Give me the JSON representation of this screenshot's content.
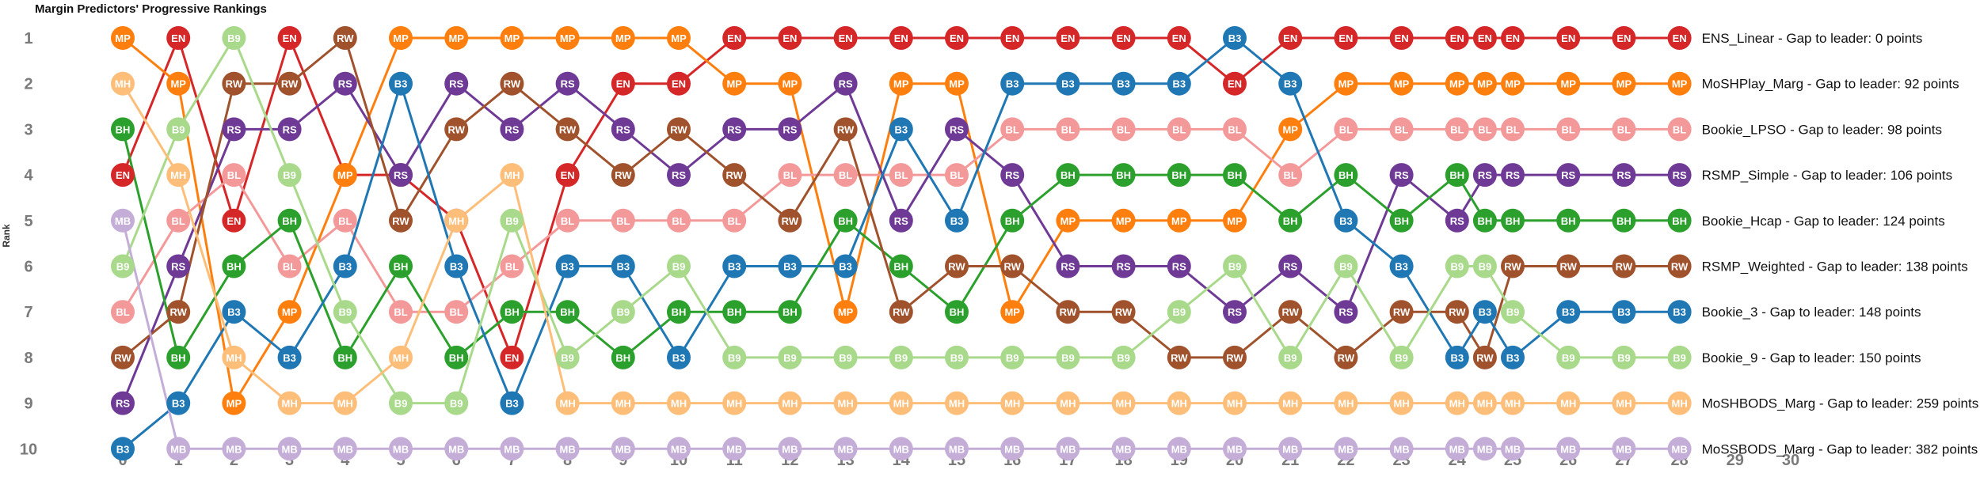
{
  "chart_data": {
    "type": "line",
    "title": "Margin Predictors' Progressive Rankings",
    "xlabel": "",
    "ylabel": "Rank",
    "x_ticks": [
      0,
      1,
      2,
      3,
      4,
      5,
      6,
      7,
      8,
      9,
      10,
      11,
      12,
      13,
      14,
      15,
      16,
      17,
      18,
      19,
      20,
      21,
      22,
      23,
      24,
      25,
      26,
      27,
      28,
      29,
      30
    ],
    "y_ticks": [
      1,
      2,
      3,
      4,
      5,
      6,
      7,
      8,
      9,
      10
    ],
    "xlim": [
      0,
      30
    ],
    "ylim": [
      10,
      1
    ],
    "x": [
      0,
      1,
      2,
      3,
      4,
      5,
      6,
      7,
      8,
      9,
      10,
      11,
      12,
      13,
      14,
      15,
      16,
      17,
      18,
      19,
      20,
      21,
      22,
      23,
      24,
      24.5,
      25,
      26,
      27,
      28
    ],
    "grid": false,
    "legend": "right-end labels",
    "series": [
      {
        "abbr": "EN",
        "label": "ENS_Linear - Gap to leader: 0 points",
        "color": "#d62728",
        "ranks": [
          4,
          1,
          5,
          1,
          4,
          4,
          5,
          8,
          4,
          2,
          2,
          1,
          1,
          1,
          1,
          1,
          1,
          1,
          1,
          1,
          2,
          1,
          1,
          1,
          1,
          1,
          1,
          1,
          1,
          1
        ]
      },
      {
        "abbr": "MP",
        "label": "MoSHPlay_Marg - Gap to leader: 92 points",
        "color": "#ff7f0e",
        "ranks": [
          1,
          2,
          9,
          7,
          4,
          1,
          1,
          1,
          1,
          1,
          1,
          2,
          2,
          7,
          2,
          2,
          7,
          5,
          5,
          5,
          5,
          3,
          2,
          2,
          2,
          2,
          2,
          2,
          2,
          2
        ]
      },
      {
        "abbr": "BL",
        "label": "Bookie_LPSO - Gap to leader: 98 points",
        "color": "#f4999a",
        "ranks": [
          7,
          5,
          4,
          6,
          5,
          7,
          7,
          6,
          5,
          5,
          5,
          5,
          4,
          4,
          4,
          4,
          3,
          3,
          3,
          3,
          3,
          4,
          3,
          3,
          3,
          3,
          3,
          3,
          3,
          3
        ]
      },
      {
        "abbr": "RS",
        "label": "RSMP_Simple - Gap to leader: 106 points",
        "color": "#6f3a96",
        "ranks": [
          9,
          6,
          3,
          3,
          2,
          4,
          2,
          3,
          2,
          3,
          4,
          3,
          3,
          2,
          5,
          3,
          4,
          6,
          6,
          6,
          7,
          6,
          7,
          4,
          5,
          4,
          4,
          4,
          4,
          4
        ]
      },
      {
        "abbr": "BH",
        "label": "Bookie_Hcap - Gap to leader: 124 points",
        "color": "#2ca02c",
        "ranks": [
          3,
          8,
          6,
          5,
          8,
          6,
          8,
          7,
          7,
          8,
          7,
          7,
          7,
          5,
          6,
          7,
          5,
          4,
          4,
          4,
          4,
          5,
          4,
          5,
          4,
          5,
          5,
          5,
          5,
          5
        ]
      },
      {
        "abbr": "RW",
        "label": "RSMP_Weighted - Gap to leader: 138 points",
        "color": "#a0522d",
        "ranks": [
          8,
          7,
          2,
          2,
          1,
          5,
          3,
          2,
          3,
          4,
          3,
          4,
          5,
          3,
          7,
          6,
          6,
          7,
          7,
          8,
          8,
          7,
          8,
          7,
          7,
          8,
          6,
          6,
          6,
          6
        ]
      },
      {
        "abbr": "B3",
        "label": "Bookie_3 - Gap to leader: 148 points",
        "color": "#1f77b4",
        "ranks": [
          10,
          9,
          7,
          8,
          6,
          2,
          6,
          9,
          6,
          6,
          8,
          6,
          6,
          6,
          3,
          5,
          2,
          2,
          2,
          2,
          1,
          2,
          5,
          6,
          8,
          7,
          8,
          7,
          7,
          7
        ]
      },
      {
        "abbr": "B9",
        "label": "Bookie_9 - Gap to leader: 150 points",
        "color": "#a9d98b",
        "ranks": [
          6,
          3,
          1,
          4,
          7,
          9,
          9,
          5,
          8,
          7,
          6,
          8,
          8,
          8,
          8,
          8,
          8,
          8,
          8,
          7,
          6,
          8,
          6,
          8,
          6,
          6,
          7,
          8,
          8,
          8
        ]
      },
      {
        "abbr": "MH",
        "label": "MoSHBODS_Marg - Gap to leader: 259 points",
        "color": "#fdbe79",
        "ranks": [
          2,
          4,
          8,
          9,
          9,
          8,
          5,
          4,
          9,
          9,
          9,
          9,
          9,
          9,
          9,
          9,
          9,
          9,
          9,
          9,
          9,
          9,
          9,
          9,
          9,
          9,
          9,
          9,
          9,
          9
        ]
      },
      {
        "abbr": "MB",
        "label": "MoSSBODS_Marg - Gap to leader: 382 points",
        "color": "#c4aed8",
        "ranks": [
          5,
          10,
          10,
          10,
          10,
          10,
          10,
          10,
          10,
          10,
          10,
          10,
          10,
          10,
          10,
          10,
          10,
          10,
          10,
          10,
          10,
          10,
          10,
          10,
          10,
          10,
          10,
          10,
          10,
          10
        ]
      }
    ]
  }
}
